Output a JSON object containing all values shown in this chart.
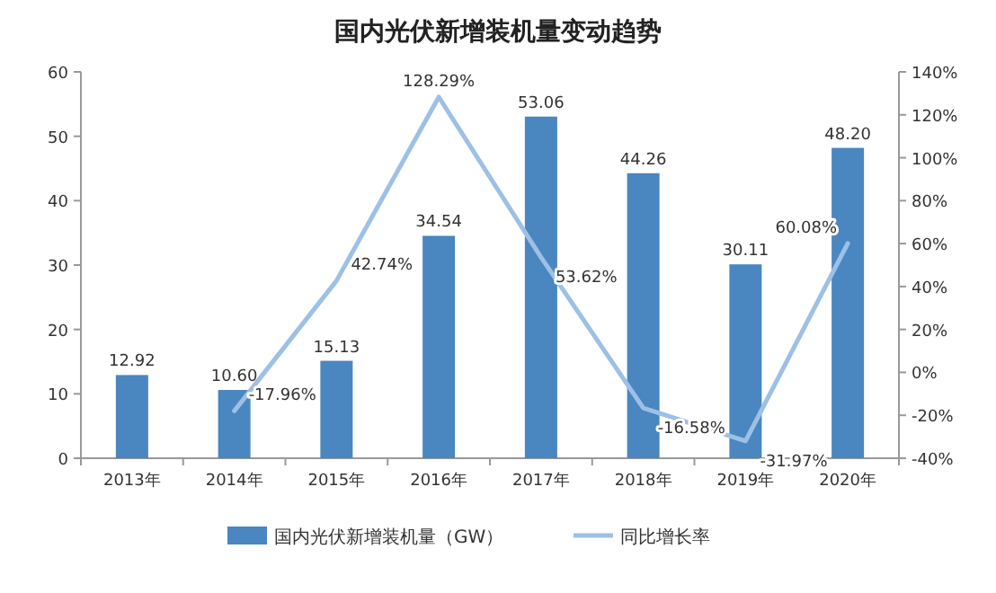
{
  "chart_data": {
    "type": "bar",
    "title": "国内光伏新增装机量变动趋势",
    "categories": [
      "2013年",
      "2014年",
      "2015年",
      "2016年",
      "2017年",
      "2018年",
      "2019年",
      "2020年"
    ],
    "series": [
      {
        "name": "国内光伏新增装机量（GW）",
        "color": "#4a86c0",
        "values": [
          12.92,
          10.6,
          15.13,
          34.54,
          53.06,
          44.26,
          30.11,
          48.2
        ],
        "value_labels": [
          "12.92",
          "10.60",
          "15.13",
          "34.54",
          "53.06",
          "44.26",
          "30.11",
          "48.20"
        ]
      },
      {
        "name": "同比增长率",
        "type": "line",
        "axis": "y2",
        "color": "#9dc0e6",
        "values": [
          null,
          -17.96,
          42.74,
          128.29,
          53.62,
          -16.58,
          -31.97,
          60.08
        ],
        "value_labels": [
          null,
          "-17.96%",
          "42.74%",
          "128.29%",
          "53.62%",
          "-16.58%",
          "-31.97%",
          "60.08%"
        ]
      }
    ],
    "ylim": [
      0,
      60
    ],
    "yticks": [
      0,
      10,
      20,
      30,
      40,
      50,
      60
    ],
    "y2lim": [
      -40,
      140
    ],
    "y2ticks": [
      {
        "value": -40,
        "label": "-40%"
      },
      {
        "value": -20,
        "label": "-20%"
      },
      {
        "value": 0,
        "label": "0%"
      },
      {
        "value": 20,
        "label": "20%"
      },
      {
        "value": 40,
        "label": "40%"
      },
      {
        "value": 60,
        "label": "60%"
      },
      {
        "value": 80,
        "label": "80%"
      },
      {
        "value": 100,
        "label": "100%"
      },
      {
        "value": 120,
        "label": "120%"
      },
      {
        "value": 140,
        "label": "140%"
      }
    ],
    "legend": "bottom"
  }
}
